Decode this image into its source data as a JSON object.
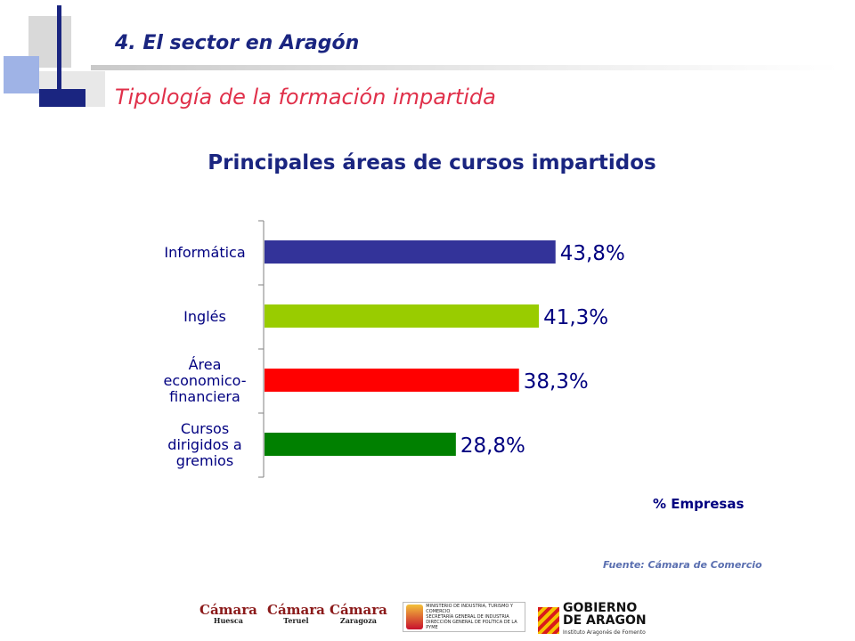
{
  "header": {
    "title": "4. El sector en Aragón",
    "subtitle": "Tipología de la formación impartida"
  },
  "chart_data": {
    "type": "bar",
    "orientation": "horizontal",
    "title": "Principales áreas de cursos impartidos",
    "xlabel": "% Empresas",
    "ylabel": "",
    "xlim": [
      0,
      50
    ],
    "grid": false,
    "categories": [
      "Informática",
      "Inglés",
      "Área economico-financiera",
      "Cursos dirigidos a gremios"
    ],
    "category_lines": [
      [
        "Informática"
      ],
      [
        "Inglés"
      ],
      [
        "Área",
        "economico-",
        "financiera"
      ],
      [
        "Cursos",
        "dirigidos a",
        "gremios"
      ]
    ],
    "values": [
      43.8,
      41.3,
      38.3,
      28.8
    ],
    "value_labels": [
      "43,8%",
      "41,3%",
      "38,3%",
      "28,8%"
    ],
    "colors": [
      "#333399",
      "#99cc00",
      "#ff0000",
      "#008000"
    ]
  },
  "footer": {
    "source": "Fuente: Cámara de Comercio",
    "logos": {
      "camara_huesca": {
        "name": "Cámara",
        "city": "Huesca"
      },
      "camara_teruel": {
        "name": "Cámara",
        "city": "Teruel"
      },
      "camara_zaragoza": {
        "name": "Cámara",
        "city": "Zaragoza"
      },
      "ministerio": [
        "MINISTERIO DE INDUSTRIA, TURISMO Y COMERCIO",
        "SECRETARÍA GENERAL DE INDUSTRIA",
        "DIRECCIÓN GENERAL DE POLÍTICA DE LA PYME"
      ],
      "gobierno": {
        "line1": "GOBIERNO",
        "line2": "DE ARAGON",
        "sub": "Instituto Aragonés de Fomento"
      }
    }
  }
}
